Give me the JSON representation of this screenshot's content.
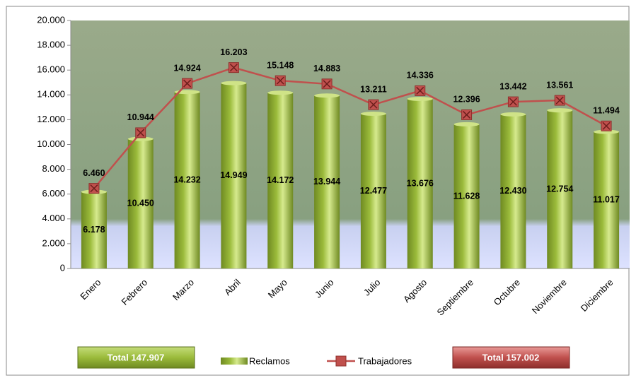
{
  "chart_data": {
    "type": "combo",
    "categories": [
      "Enero",
      "Febrero",
      "Marzo",
      "Abril",
      "Mayo",
      "Junio",
      "Julio",
      "Agosto",
      "Septiembre",
      "Octubre",
      "Noviembre",
      "Diciembre"
    ],
    "series": [
      {
        "name": "Reclamos",
        "type": "bar",
        "color": "#9bbb3b",
        "values": [
          6178,
          10450,
          14232,
          14949,
          14172,
          13944,
          12477,
          13676,
          11628,
          12430,
          12754,
          11017
        ],
        "value_labels": [
          "6.178",
          "10.450",
          "14.232",
          "14.949",
          "14.172",
          "13.944",
          "12.477",
          "13.676",
          "11.628",
          "12.430",
          "12.754",
          "11.017"
        ]
      },
      {
        "name": "Trabajadores",
        "type": "line",
        "color": "#c0504d",
        "values": [
          6460,
          10944,
          14924,
          16203,
          15148,
          14883,
          13211,
          14336,
          12396,
          13442,
          13561,
          11494
        ],
        "value_labels": [
          "6.460",
          "10.944",
          "14.924",
          "16.203",
          "15.148",
          "14.883",
          "13.211",
          "14.336",
          "12.396",
          "13.442",
          "13.561",
          "11.494"
        ]
      }
    ],
    "ylim": [
      0,
      20000
    ],
    "yticks": [
      0,
      {
        "value": 2000,
        "label": "2.000"
      },
      {
        "value": 4000,
        "label": "4.000"
      },
      {
        "value": 6000,
        "label": "6.000"
      },
      {
        "value": 8000,
        "label": "8.000"
      },
      {
        "value": 10000,
        "label": "10.000"
      },
      {
        "value": 12000,
        "label": "12.000"
      },
      {
        "value": 14000,
        "label": "14.000"
      },
      {
        "value": 16000,
        "label": "16.000"
      },
      {
        "value": 18000,
        "label": "18.000"
      },
      {
        "value": 20000,
        "label": "20.000"
      }
    ],
    "annotations": [
      "Total  147.907",
      "Total  157.002"
    ],
    "legend": "bottom"
  }
}
